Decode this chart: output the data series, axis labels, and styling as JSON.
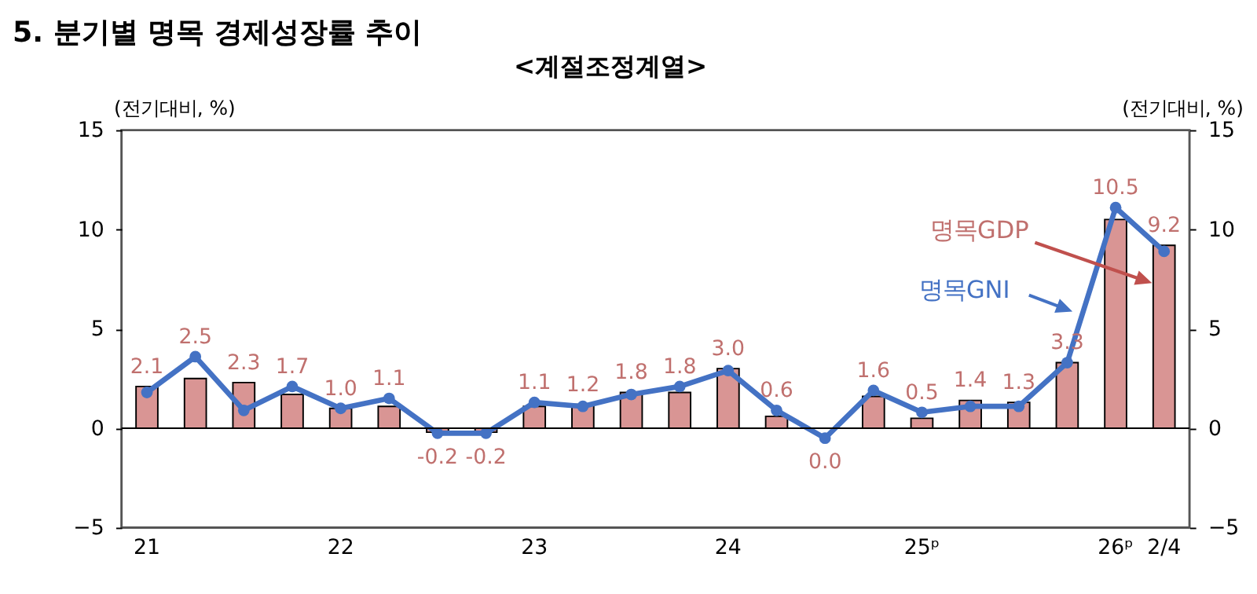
{
  "chart_data": {
    "type": "bar",
    "title": "5. 분기별 명목 경제성장률 추이",
    "subtitle": "<계절조정계열>",
    "ylabel": "(전기대비, %)",
    "y2label": "(전기대비, %)",
    "categories": [
      "21",
      null,
      null,
      null,
      "22",
      null,
      null,
      null,
      "23",
      null,
      null,
      null,
      "24",
      null,
      null,
      null,
      "25ᵖ",
      null,
      null,
      null,
      "26ᵖ",
      "2/4"
    ],
    "series": [
      {
        "name": "명목GDP",
        "color": "#d99594",
        "value_labels": [
          "2.1",
          "2.5",
          "2.3",
          "1.7",
          "1.0",
          "1.1",
          "-0.2",
          "-0.2",
          "1.1",
          "1.2",
          "1.8",
          "1.8",
          "3.0",
          "0.6",
          "0.0",
          "1.6",
          "0.5",
          "1.4",
          "1.3",
          "3.3",
          "10.5",
          "9.2"
        ],
        "values": [
          2.1,
          2.5,
          2.3,
          1.7,
          1.0,
          1.1,
          -0.2,
          -0.2,
          1.1,
          1.2,
          1.8,
          1.8,
          3.0,
          0.6,
          0.0,
          1.6,
          0.5,
          1.4,
          1.3,
          3.3,
          10.5,
          9.2
        ]
      },
      {
        "name": "명목GNI",
        "type": "line",
        "color": "#4472c4",
        "marker": "circle",
        "values": [
          1.8,
          3.6,
          0.9,
          2.1,
          1.0,
          1.5,
          -0.25,
          -0.25,
          1.3,
          1.1,
          1.7,
          2.1,
          2.9,
          0.9,
          -0.5,
          1.9,
          0.8,
          1.1,
          1.1,
          3.3,
          11.1,
          8.9
        ]
      }
    ],
    "ylim": [
      -5,
      15
    ],
    "yticks": [
      -5,
      0,
      5,
      10,
      15
    ],
    "y2lim": [
      -5,
      15
    ],
    "y2ticks": [
      -5,
      0,
      5,
      10,
      15
    ],
    "ref_lines": [
      {
        "axis": "y",
        "value": 0,
        "color": "#000000"
      }
    ],
    "grid": false
  }
}
